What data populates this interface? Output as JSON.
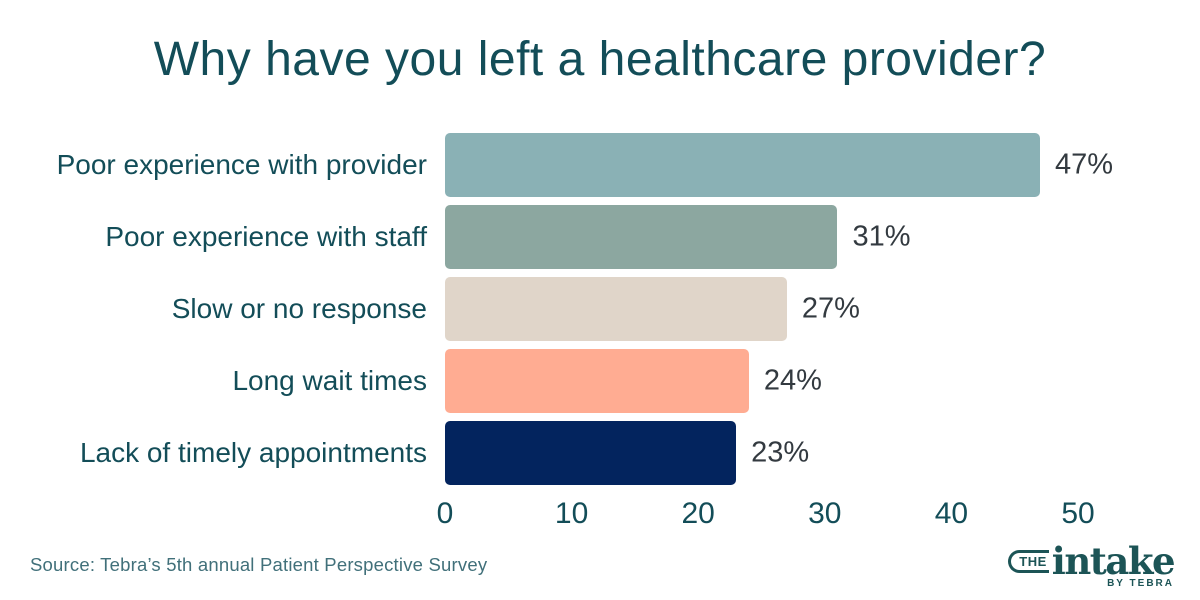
{
  "title": "Why have you left a healthcare provider?",
  "source_note": "Source: Tebra’s 5th annual Patient Perspective Survey",
  "logo": {
    "the": "THE",
    "intake": "intake",
    "byline": "BY TEBRA"
  },
  "colors": {
    "title_text": "#134d58",
    "category_text": "#134d58",
    "tick_text": "#134d58",
    "value_text": "#333a40",
    "source_text": "#41707a",
    "logo": "#1c5456",
    "background": "#ffffff"
  },
  "chart_data": {
    "type": "bar",
    "orientation": "horizontal",
    "title": "Why have you left a healthcare provider?",
    "categories": [
      "Poor experience with provider",
      "Poor experience with staff",
      "Slow or no response",
      "Long wait times",
      "Lack of timely appointments"
    ],
    "values": [
      47,
      31,
      27,
      24,
      23
    ],
    "value_labels": [
      "47%",
      "31%",
      "27%",
      "24%",
      "23%"
    ],
    "bar_colors": [
      "#8ab1b5",
      "#8ca7a0",
      "#e0d5c9",
      "#ffac92",
      "#03245e"
    ],
    "xlabel": "",
    "ylabel": "",
    "xlim": [
      0,
      50
    ],
    "x_ticks": [
      0,
      10,
      20,
      30,
      40,
      50
    ],
    "grid": false,
    "legend": false
  }
}
